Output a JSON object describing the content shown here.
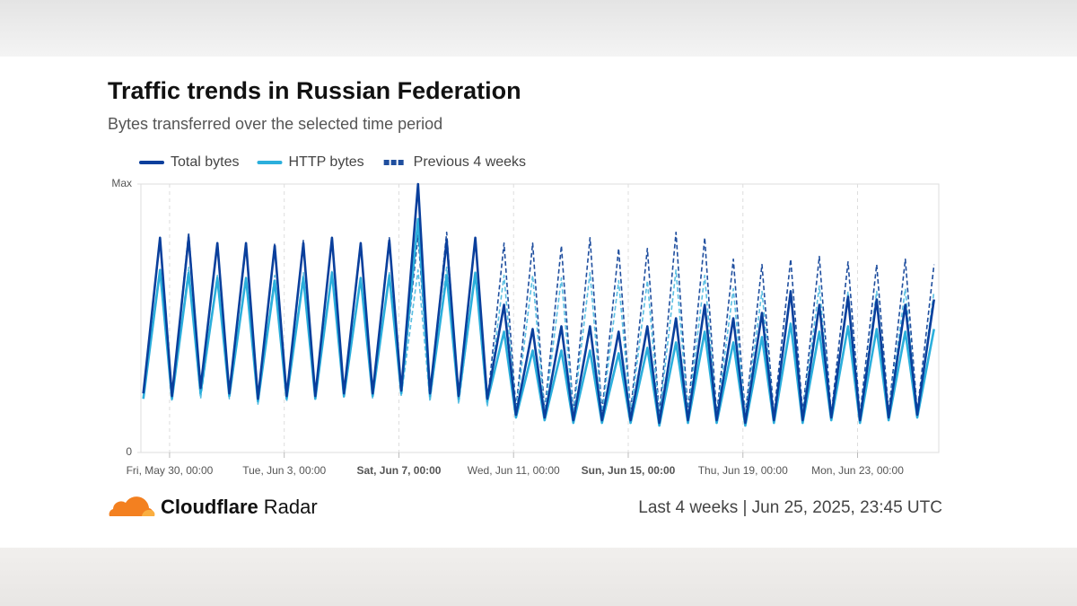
{
  "chart_data": {
    "type": "line",
    "title": "Traffic trends in Russian Federation",
    "subtitle": "Bytes transferred over the selected time period",
    "x": [
      "2025-05-29T02:00",
      "2025-05-29T16:00",
      "2025-05-30T02:00",
      "2025-05-30T16:00",
      "2025-05-31T02:00",
      "2025-05-31T16:00",
      "2025-06-01T02:00",
      "2025-06-01T16:00",
      "2025-06-02T02:00",
      "2025-06-02T16:00",
      "2025-06-03T02:00",
      "2025-06-03T16:00",
      "2025-06-04T02:00",
      "2025-06-04T16:00",
      "2025-06-05T02:00",
      "2025-06-05T16:00",
      "2025-06-06T02:00",
      "2025-06-06T16:00",
      "2025-06-07T02:00",
      "2025-06-07T16:00",
      "2025-06-08T02:00",
      "2025-06-08T16:00",
      "2025-06-09T02:00",
      "2025-06-09T16:00",
      "2025-06-10T02:00",
      "2025-06-10T16:00",
      "2025-06-11T02:00",
      "2025-06-11T16:00",
      "2025-06-12T02:00",
      "2025-06-12T16:00",
      "2025-06-13T02:00",
      "2025-06-13T16:00",
      "2025-06-14T02:00",
      "2025-06-14T16:00",
      "2025-06-15T02:00",
      "2025-06-15T16:00",
      "2025-06-16T02:00",
      "2025-06-16T16:00",
      "2025-06-17T02:00",
      "2025-06-17T16:00",
      "2025-06-18T02:00",
      "2025-06-18T16:00",
      "2025-06-19T02:00",
      "2025-06-19T16:00",
      "2025-06-20T02:00",
      "2025-06-20T16:00",
      "2025-06-21T02:00",
      "2025-06-21T16:00",
      "2025-06-22T02:00",
      "2025-06-22T16:00",
      "2025-06-23T02:00",
      "2025-06-23T16:00",
      "2025-06-24T02:00",
      "2025-06-24T16:00",
      "2025-06-25T02:00",
      "2025-06-25T16:00"
    ],
    "series": [
      {
        "name": "Total bytes",
        "color": "#0a3f9c",
        "values": [
          0.22,
          0.8,
          0.21,
          0.8,
          0.24,
          0.78,
          0.22,
          0.78,
          0.2,
          0.77,
          0.21,
          0.78,
          0.21,
          0.8,
          0.22,
          0.78,
          0.22,
          0.79,
          0.23,
          1.0,
          0.22,
          0.79,
          0.21,
          0.8,
          0.2,
          0.55,
          0.14,
          0.46,
          0.13,
          0.47,
          0.12,
          0.47,
          0.12,
          0.45,
          0.12,
          0.47,
          0.11,
          0.5,
          0.12,
          0.55,
          0.12,
          0.5,
          0.11,
          0.52,
          0.12,
          0.6,
          0.12,
          0.55,
          0.13,
          0.58,
          0.12,
          0.57,
          0.13,
          0.55,
          0.14,
          0.57
        ]
      },
      {
        "name": "HTTP bytes",
        "color": "#2bafdc",
        "values": [
          0.2,
          0.68,
          0.2,
          0.67,
          0.22,
          0.65,
          0.21,
          0.65,
          0.19,
          0.64,
          0.2,
          0.65,
          0.2,
          0.67,
          0.21,
          0.65,
          0.21,
          0.66,
          0.22,
          0.87,
          0.21,
          0.66,
          0.2,
          0.67,
          0.19,
          0.45,
          0.13,
          0.38,
          0.12,
          0.38,
          0.11,
          0.38,
          0.11,
          0.37,
          0.11,
          0.39,
          0.1,
          0.41,
          0.11,
          0.45,
          0.11,
          0.41,
          0.1,
          0.43,
          0.11,
          0.48,
          0.11,
          0.45,
          0.12,
          0.47,
          0.11,
          0.46,
          0.12,
          0.45,
          0.13,
          0.46
        ]
      }
    ],
    "previous": {
      "name": "Previous 4 weeks",
      "series": [
        {
          "color": "#1f4e9e",
          "values": [
            0.22,
            0.79,
            0.2,
            0.82,
            0.22,
            0.78,
            0.21,
            0.77,
            0.19,
            0.78,
            0.2,
            0.79,
            0.21,
            0.8,
            0.21,
            0.77,
            0.22,
            0.8,
            0.22,
            0.81,
            0.2,
            0.82,
            0.19,
            0.8,
            0.18,
            0.78,
            0.16,
            0.78,
            0.15,
            0.77,
            0.15,
            0.8,
            0.15,
            0.76,
            0.15,
            0.76,
            0.14,
            0.82,
            0.15,
            0.8,
            0.14,
            0.72,
            0.14,
            0.7,
            0.14,
            0.72,
            0.15,
            0.73,
            0.14,
            0.71,
            0.14,
            0.7,
            0.15,
            0.72,
            0.15,
            0.7
          ]
        },
        {
          "color": "#5bbfe2",
          "values": [
            0.2,
            0.67,
            0.19,
            0.69,
            0.2,
            0.66,
            0.2,
            0.65,
            0.18,
            0.66,
            0.19,
            0.67,
            0.2,
            0.68,
            0.2,
            0.65,
            0.2,
            0.67,
            0.21,
            0.68,
            0.19,
            0.69,
            0.18,
            0.67,
            0.17,
            0.66,
            0.15,
            0.66,
            0.14,
            0.65,
            0.14,
            0.67,
            0.14,
            0.64,
            0.14,
            0.64,
            0.13,
            0.68,
            0.14,
            0.66,
            0.13,
            0.61,
            0.13,
            0.6,
            0.13,
            0.61,
            0.14,
            0.62,
            0.13,
            0.6,
            0.13,
            0.6,
            0.14,
            0.61,
            0.14,
            0.6
          ]
        }
      ]
    },
    "xlim": [
      "2025-05-29T00:00",
      "2025-06-25T20:00"
    ],
    "xticks": [
      {
        "value": "2025-05-30T00:00",
        "label": "Fri, May 30, 00:00"
      },
      {
        "value": "2025-06-03T00:00",
        "label": "Tue, Jun 3, 00:00"
      },
      {
        "value": "2025-06-07T00:00",
        "label": "Sat, Jun 7, 00:00",
        "bold": true
      },
      {
        "value": "2025-06-11T00:00",
        "label": "Wed, Jun 11, 00:00"
      },
      {
        "value": "2025-06-15T00:00",
        "label": "Sun, Jun 15, 00:00",
        "bold": true
      },
      {
        "value": "2025-06-19T00:00",
        "label": "Thu, Jun 19, 00:00"
      },
      {
        "value": "2025-06-23T00:00",
        "label": "Mon, Jun 23, 00:00"
      }
    ],
    "ylim": [
      0,
      1
    ],
    "yticks": [
      0,
      {
        "value": 1,
        "label": "Max"
      }
    ],
    "xgrid": true
  },
  "footer": {
    "brand": "Cloudflare",
    "product": "Radar",
    "info": "Last 4 weeks | Jun 25, 2025, 23:45 UTC"
  }
}
